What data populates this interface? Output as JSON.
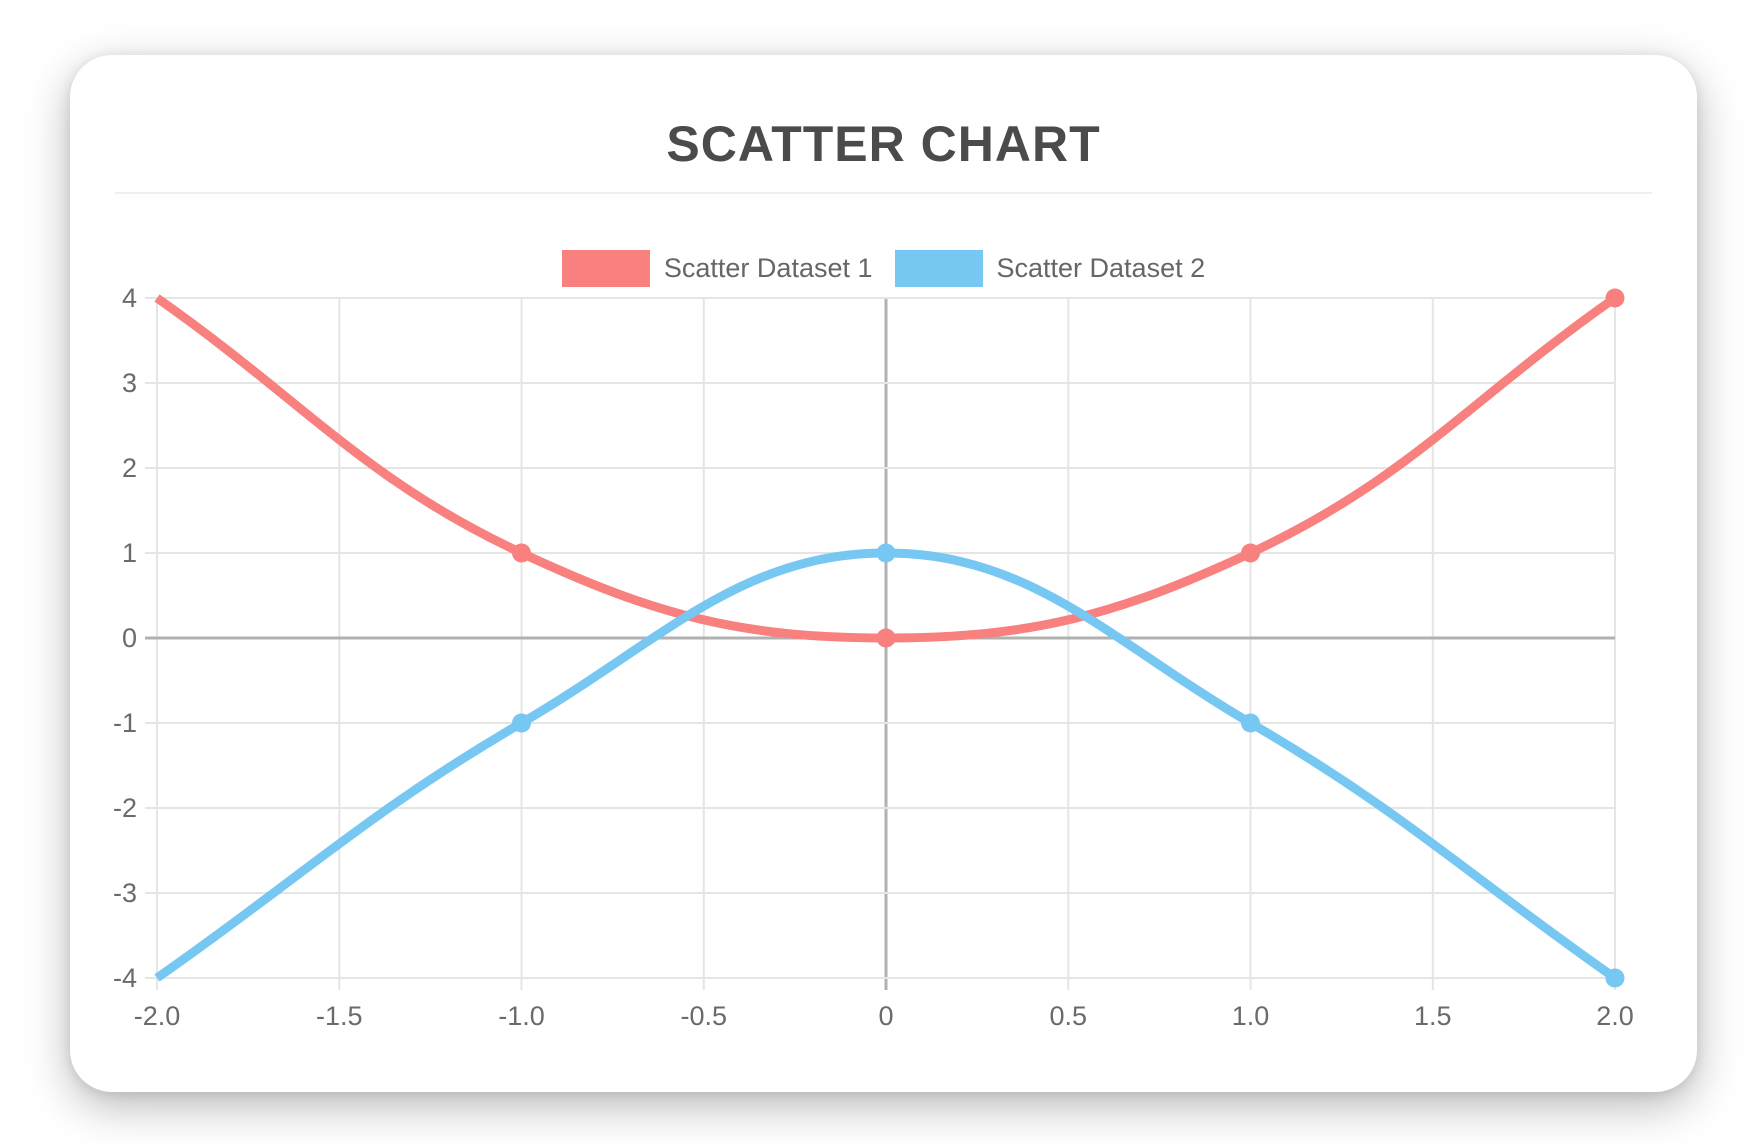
{
  "page": {
    "title": "SCATTER CHART"
  },
  "chart_data": {
    "type": "scatter",
    "title": "SCATTER CHART",
    "series": [
      {
        "name": "Scatter Dataset 1",
        "color": "#F8807E",
        "points": [
          {
            "x": -2,
            "y": 4,
            "marker": false
          },
          {
            "x": -1,
            "y": 1,
            "marker": true
          },
          {
            "x": 0,
            "y": 0,
            "marker": true
          },
          {
            "x": 1,
            "y": 1,
            "marker": true
          },
          {
            "x": 2,
            "y": 4,
            "marker": true
          }
        ]
      },
      {
        "name": "Scatter Dataset 2",
        "color": "#77C7F3",
        "points": [
          {
            "x": -2,
            "y": -4,
            "marker": false
          },
          {
            "x": -1,
            "y": -1,
            "marker": true
          },
          {
            "x": 0,
            "y": 1,
            "marker": true
          },
          {
            "x": 1,
            "y": -1,
            "marker": true
          },
          {
            "x": 2,
            "y": -4,
            "marker": true
          }
        ]
      }
    ],
    "x_axis": {
      "min": -2,
      "max": 2,
      "tick_step": 0.5,
      "tick_labels": [
        "-2.0",
        "-1.5",
        "-1.0",
        "-0.5",
        "0",
        "0.5",
        "1.0",
        "1.5",
        "2.0"
      ]
    },
    "y_axis": {
      "min": -4,
      "max": 4,
      "tick_step": 1,
      "tick_labels_top_to_bottom": [
        "4",
        "3",
        "2",
        "1",
        "0",
        "-1",
        "-2",
        "-3",
        "-4"
      ]
    },
    "legend_position": "top-center",
    "grid": true,
    "line_tension": 0.4,
    "style": {
      "grid_color": "#E5E5E5",
      "zero_line_color": "#B1B1B1",
      "tick_text_color": "#6A6A6A",
      "title_color": "#4B4B4B",
      "legend_text_color": "#666666",
      "line_width": 9,
      "point_radius": 9.5
    }
  }
}
